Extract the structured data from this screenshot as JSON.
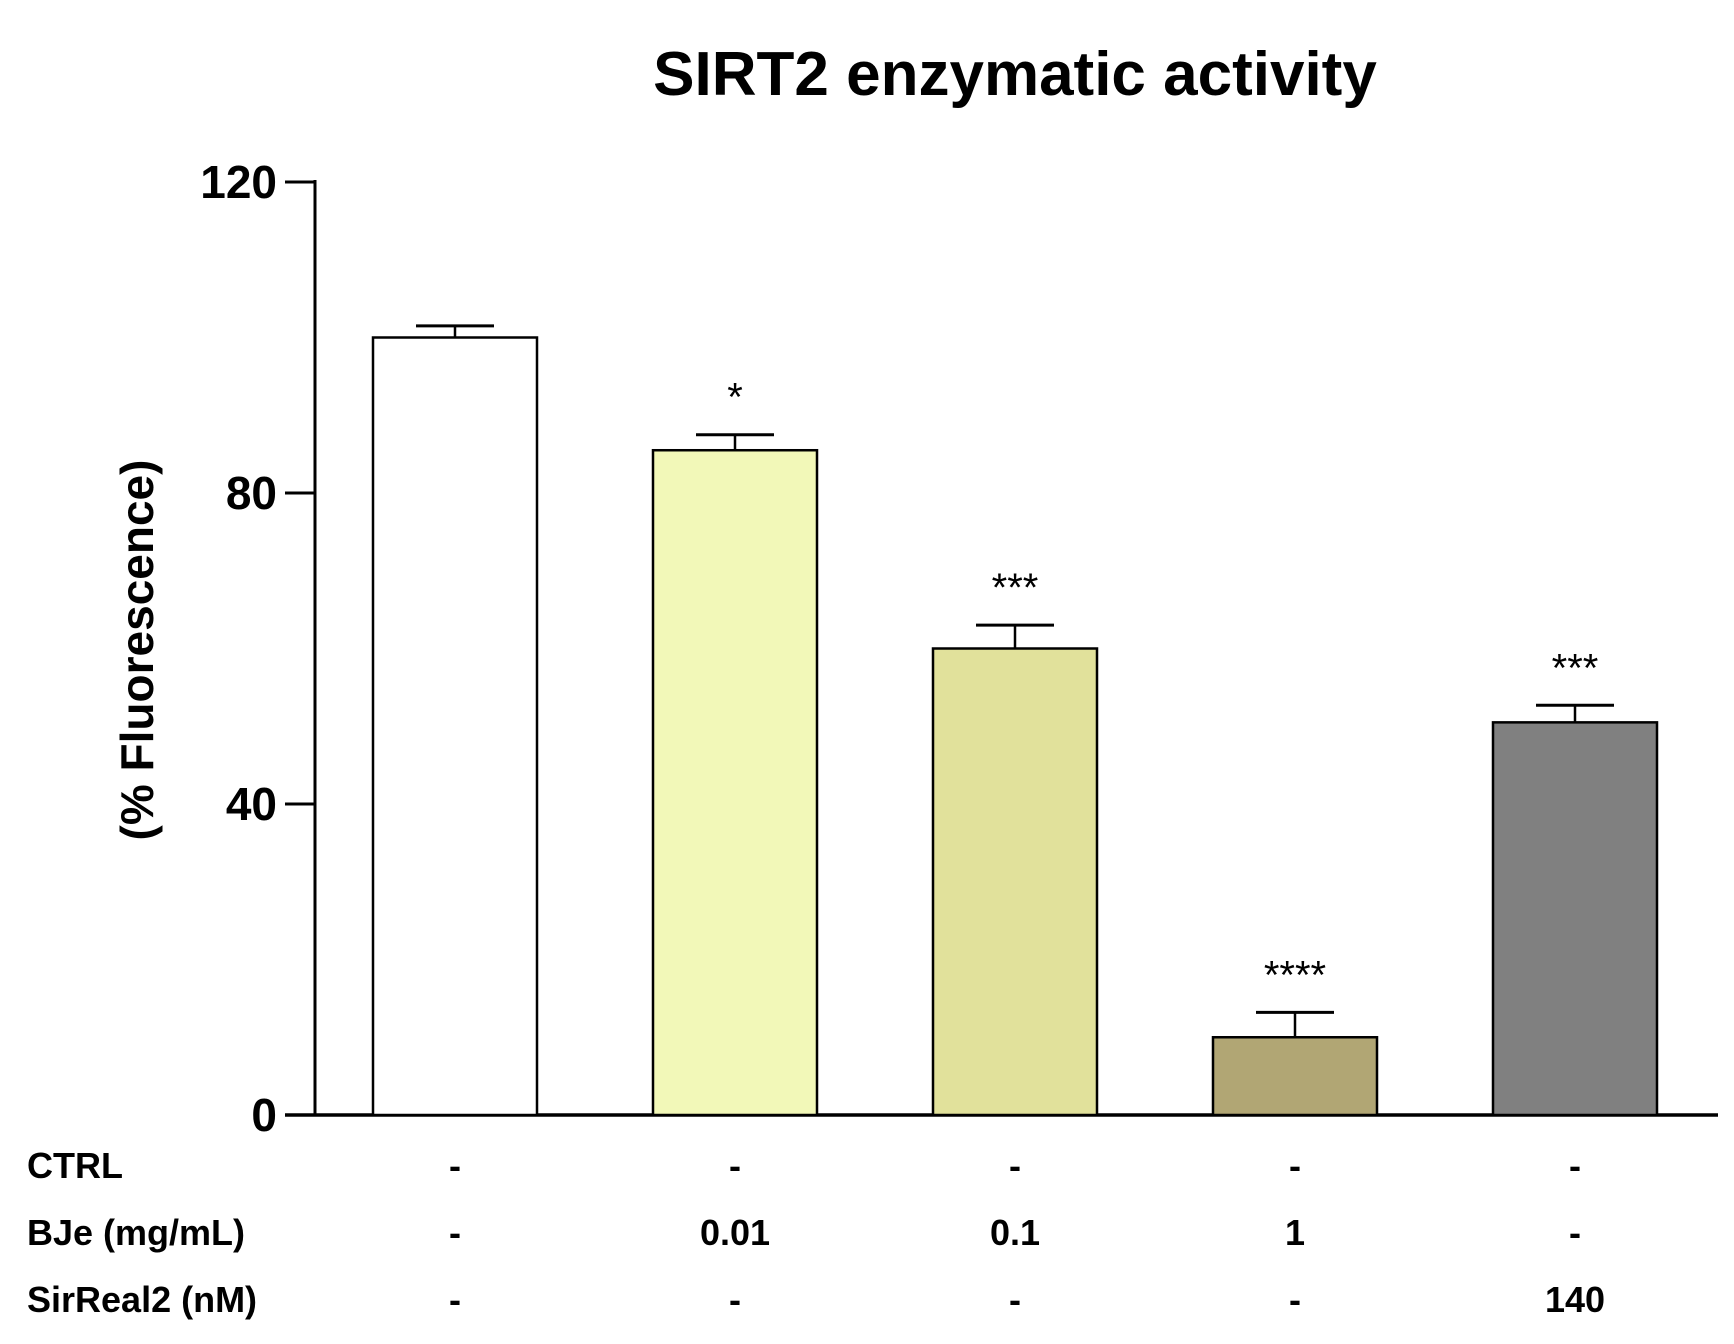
{
  "chart_data": {
    "type": "bar",
    "title": "SIRT2 enzymatic activity",
    "xlabel": "",
    "ylabel": "(% Fluorescence)",
    "ylim": [
      0,
      120
    ],
    "yticks": [
      "0",
      "40",
      "80",
      "120"
    ],
    "categories": [
      "CTRL",
      "BJe 0.01",
      "BJe 0.1",
      "BJe 1",
      "SirReal2 140"
    ],
    "values": [
      100,
      85.5,
      60,
      10,
      50.5
    ],
    "errors": [
      1.5,
      2,
      3,
      3.2,
      2.2
    ],
    "colors": [
      "#ffffff",
      "#f2f8b8",
      "#e1e19b",
      "#b1a674",
      "#808080"
    ],
    "significance": [
      "",
      "*",
      "***",
      "****",
      "***"
    ],
    "legend": false,
    "table": {
      "rows": [
        {
          "label": "CTRL",
          "cells": [
            "-",
            "-",
            "-",
            "-",
            "-"
          ]
        },
        {
          "label": "BJe (mg/mL)",
          "cells": [
            "-",
            "0.01",
            "0.1",
            "1",
            "-"
          ]
        },
        {
          "label": "SirReal2 (nM)",
          "cells": [
            "-",
            "-",
            "-",
            "-",
            "140"
          ]
        }
      ]
    }
  }
}
